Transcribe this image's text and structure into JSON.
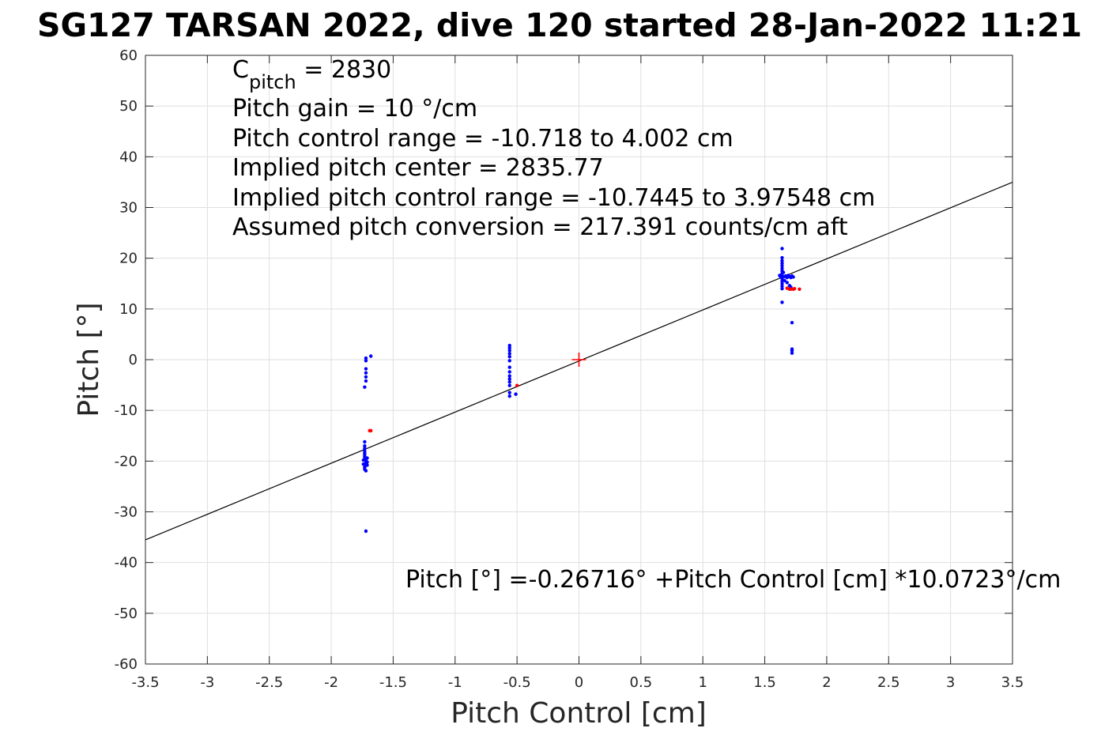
{
  "chart_data": {
    "type": "scatter",
    "title": "SG127 TARSAN 2022, dive 120 started 28-Jan-2022 11:21",
    "xlabel": "Pitch Control [cm]",
    "ylabel": "Pitch [°]",
    "xlim": [
      -3.5,
      3.5
    ],
    "ylim": [
      -60,
      60
    ],
    "xticks": [
      "-3.5",
      "-3",
      "-2.5",
      "-2",
      "-1.5",
      "-1",
      "-0.5",
      "0",
      "0.5",
      "1",
      "1.5",
      "2",
      "2.5",
      "3",
      "3.5"
    ],
    "xtick_values": [
      -3.5,
      -3,
      -2.5,
      -2,
      -1.5,
      -1,
      -0.5,
      0,
      0.5,
      1,
      1.5,
      2,
      2.5,
      3,
      3.5
    ],
    "yticks": [
      "-60",
      "-50",
      "-40",
      "-30",
      "-20",
      "-10",
      "0",
      "10",
      "20",
      "30",
      "40",
      "50",
      "60"
    ],
    "ytick_values": [
      -60,
      -50,
      -40,
      -30,
      -20,
      -10,
      0,
      10,
      20,
      30,
      40,
      50,
      60
    ],
    "grid": true,
    "colors": {
      "observed": "#0000ff",
      "flagged": "#ff0000",
      "fit": "#000000",
      "center": "#ff0000"
    },
    "annotations": {
      "cpitch_prefix": "C",
      "cpitch_sub": "pitch",
      "cpitch_value": " = 2830",
      "pitch_gain": "Pitch gain = 10 °/cm",
      "control_range": "Pitch control range = -10.718 to 4.002 cm",
      "implied_center": "Implied pitch center = 2835.77",
      "implied_range": "Implied pitch control range = -10.7445 to 3.97548 cm",
      "conversion": "Assumed pitch conversion = 217.391 counts/cm aft",
      "fit_equation": "Pitch [°] =-0.26716° +Pitch Control [cm] *10.0723°/cm"
    },
    "fit_line": {
      "intercept": -0.26716,
      "slope": 10.0723
    },
    "center_marker": {
      "x": 0,
      "y": 0
    },
    "series": [
      {
        "color": "#0000ff",
        "points": [
          [
            -1.72,
            0.3
          ],
          [
            -1.72,
            -0.2
          ],
          [
            -1.72,
            -1.8
          ],
          [
            -1.72,
            -2.6
          ],
          [
            -1.72,
            -3.4
          ],
          [
            -1.72,
            -4.2
          ],
          [
            -1.73,
            -5.4
          ],
          [
            -1.68,
            0.7
          ],
          [
            -1.73,
            -16.2
          ],
          [
            -1.73,
            -17.0
          ],
          [
            -1.73,
            -17.5
          ],
          [
            -1.73,
            -18.0
          ],
          [
            -1.73,
            -18.4
          ],
          [
            -1.73,
            -18.8
          ],
          [
            -1.73,
            -19.2
          ],
          [
            -1.72,
            -19.6
          ],
          [
            -1.72,
            -20.0
          ],
          [
            -1.72,
            -20.4
          ],
          [
            -1.72,
            -20.8
          ],
          [
            -1.73,
            -21.2
          ],
          [
            -1.73,
            -21.6
          ],
          [
            -1.72,
            -21.9
          ],
          [
            -1.71,
            -19.4
          ],
          [
            -1.71,
            -20.2
          ],
          [
            -1.71,
            -20.8
          ],
          [
            -1.74,
            -19.8
          ],
          [
            -1.74,
            -20.6
          ],
          [
            -1.72,
            -33.8
          ],
          [
            -0.56,
            2.8
          ],
          [
            -0.56,
            2.3
          ],
          [
            -0.56,
            1.8
          ],
          [
            -0.56,
            1.2
          ],
          [
            -0.56,
            0.6
          ],
          [
            -0.56,
            -0.2
          ],
          [
            -0.56,
            -1.5
          ],
          [
            -0.56,
            -2.4
          ],
          [
            -0.56,
            -3.2
          ],
          [
            -0.56,
            -3.8
          ],
          [
            -0.56,
            -4.4
          ],
          [
            -0.56,
            -5.1
          ],
          [
            -0.56,
            -6.5
          ],
          [
            -0.56,
            -7.2
          ],
          [
            -0.51,
            -6.8
          ],
          [
            1.64,
            21.9
          ],
          [
            1.64,
            20.1
          ],
          [
            1.64,
            19.5
          ],
          [
            1.64,
            19.0
          ],
          [
            1.64,
            18.5
          ],
          [
            1.64,
            18.0
          ],
          [
            1.64,
            17.5
          ],
          [
            1.64,
            17.0
          ],
          [
            1.64,
            16.5
          ],
          [
            1.64,
            16.0
          ],
          [
            1.64,
            15.5
          ],
          [
            1.64,
            15.0
          ],
          [
            1.64,
            14.5
          ],
          [
            1.64,
            14.0
          ],
          [
            1.63,
            16.3
          ],
          [
            1.62,
            16.6
          ],
          [
            1.66,
            16.4
          ],
          [
            1.67,
            16.5
          ],
          [
            1.68,
            16.2
          ],
          [
            1.69,
            16.6
          ],
          [
            1.7,
            16.4
          ],
          [
            1.71,
            16.2
          ],
          [
            1.72,
            16.5
          ],
          [
            1.73,
            16.3
          ],
          [
            1.66,
            15.6
          ],
          [
            1.68,
            15.2
          ],
          [
            1.7,
            14.6
          ],
          [
            1.71,
            14.3
          ],
          [
            1.65,
            17.2
          ],
          [
            1.64,
            11.3
          ],
          [
            1.72,
            7.3
          ],
          [
            1.72,
            2.1
          ],
          [
            1.72,
            1.8
          ],
          [
            1.72,
            1.3
          ]
        ]
      },
      {
        "color": "#ff0000",
        "points": [
          [
            -1.69,
            -14.0
          ],
          [
            -1.68,
            -14.0
          ],
          [
            -0.5,
            -5.1
          ],
          [
            1.7,
            13.9
          ],
          [
            1.71,
            13.9
          ],
          [
            1.73,
            13.9
          ],
          [
            1.74,
            14.0
          ],
          [
            1.78,
            13.9
          ],
          [
            1.68,
            14.1
          ]
        ]
      }
    ]
  }
}
